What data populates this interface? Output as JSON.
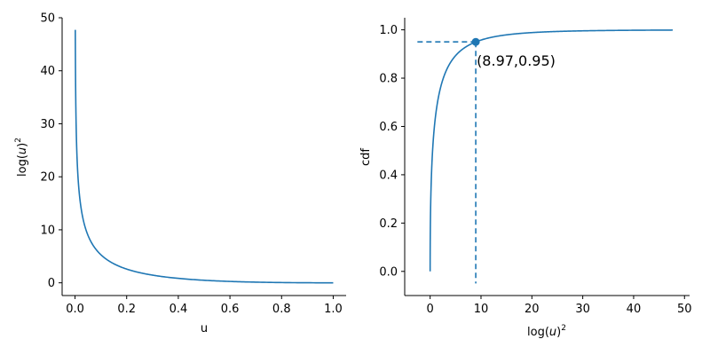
{
  "colors": {
    "series": "#1f77b4",
    "axis": "#000000",
    "background": "#ffffff"
  },
  "chart_data": [
    {
      "type": "line",
      "title": "",
      "xlabel": "u",
      "ylabel": {
        "base": "log(",
        "var": "u",
        "close": ")",
        "sup": "2"
      },
      "xlim": [
        -0.05,
        1.05
      ],
      "ylim": [
        -2.4,
        50
      ],
      "xticks": [
        0.0,
        0.2,
        0.4,
        0.6,
        0.8,
        1.0
      ],
      "xtick_labels": [
        "0.0",
        "0.2",
        "0.4",
        "0.6",
        "0.8",
        "1.0"
      ],
      "yticks": [
        0,
        10,
        20,
        30,
        40,
        50
      ],
      "ytick_labels": [
        "0",
        "10",
        "20",
        "30",
        "40",
        "50"
      ],
      "grid": false,
      "series": [
        {
          "function": "log(u)^2",
          "x_range": [
            0.001,
            1.0
          ],
          "x": [
            0.001,
            0.002,
            0.005,
            0.01,
            0.02,
            0.05,
            0.1,
            0.2,
            0.3,
            0.4,
            0.5,
            0.6,
            0.7,
            0.8,
            0.9,
            1.0
          ],
          "y": [
            47.7,
            38.6,
            28.1,
            21.2,
            15.3,
            8.97,
            5.3,
            2.59,
            1.45,
            0.84,
            0.48,
            0.26,
            0.13,
            0.05,
            0.01,
            0.0
          ]
        }
      ]
    },
    {
      "type": "line",
      "title": "",
      "xlabel": {
        "base": "log(",
        "var": "u",
        "close": ")",
        "sup": "2"
      },
      "ylabel": "cdf",
      "xlim": [
        -5,
        51
      ],
      "ylim": [
        -0.1,
        1.05
      ],
      "xticks": [
        0,
        10,
        20,
        30,
        40,
        50
      ],
      "xtick_labels": [
        "0",
        "10",
        "20",
        "30",
        "40",
        "50"
      ],
      "yticks": [
        0.0,
        0.2,
        0.4,
        0.6,
        0.8,
        1.0
      ],
      "ytick_labels": [
        "0.0",
        "0.2",
        "0.4",
        "0.6",
        "0.8",
        "1.0"
      ],
      "grid": false,
      "series": [
        {
          "function": "cdf of log(U)^2, U~Uniform(0,1): 1 - exp(-sqrt(x))",
          "x_range": [
            0,
            47.7
          ],
          "x": [
            0,
            0.1,
            0.5,
            1,
            2,
            4,
            8.97,
            15,
            20,
            30,
            40,
            47.7
          ],
          "y": [
            0.0,
            0.271,
            0.507,
            0.632,
            0.757,
            0.865,
            0.95,
            0.979,
            0.989,
            0.996,
            0.998,
            0.999
          ]
        }
      ],
      "reference_point": {
        "x": 8.97,
        "y": 0.95,
        "label": "(8.97,0.95)"
      },
      "reference_lines": {
        "horizontal_from_x": -2.5,
        "vertical_to_y": -0.05,
        "style": "dashed"
      }
    }
  ]
}
